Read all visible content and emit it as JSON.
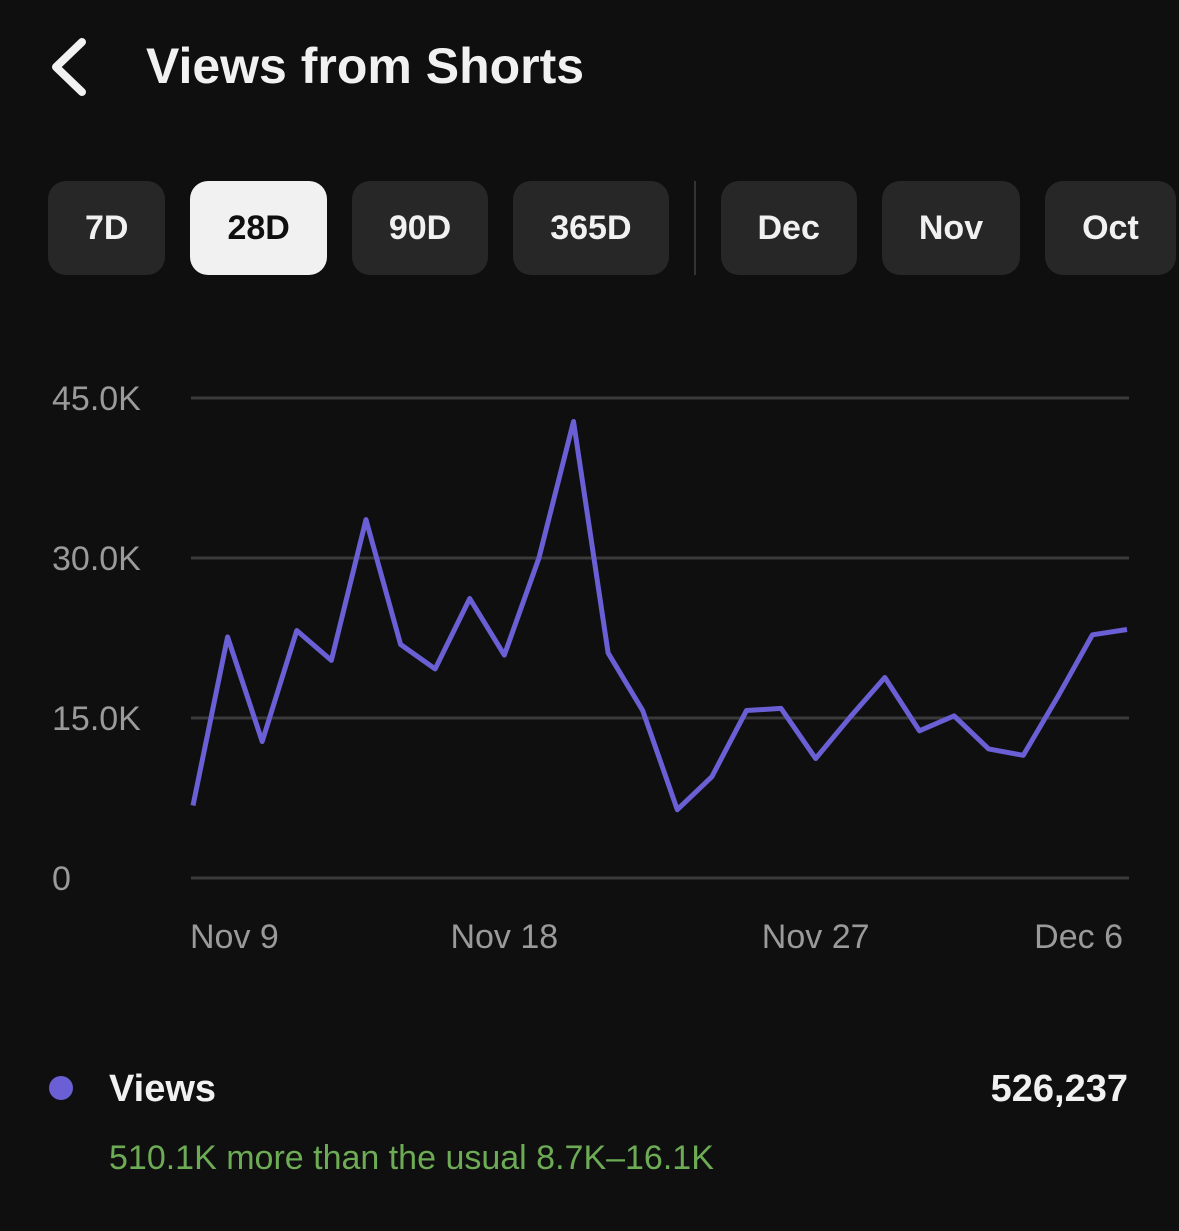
{
  "header": {
    "title": "Views from Shorts"
  },
  "tabs": [
    {
      "label": "7D"
    },
    {
      "label": "28D",
      "selected": true
    },
    {
      "label": "90D"
    },
    {
      "label": "365D"
    },
    {
      "label": "Dec"
    },
    {
      "label": "Nov"
    },
    {
      "label": "Oct"
    }
  ],
  "chart_data": {
    "type": "line",
    "categories": [
      "Nov 9",
      null,
      null,
      null,
      null,
      null,
      null,
      null,
      null,
      "Nov 18",
      null,
      null,
      null,
      null,
      null,
      null,
      null,
      null,
      "Nov 27",
      null,
      null,
      null,
      null,
      null,
      null,
      null,
      null,
      "Dec 6"
    ],
    "series": [
      {
        "name": "Views",
        "color": "#6a5fd4",
        "values": [
          6800,
          22600,
          12800,
          23200,
          20400,
          33600,
          21900,
          19600,
          26200,
          20900,
          30000,
          42800,
          21100,
          15700,
          6400,
          9500,
          15700,
          15900,
          11200,
          15100,
          18800,
          13800,
          15200,
          12100,
          11500,
          17000,
          22800,
          23300
        ]
      }
    ],
    "ylim": [
      0,
      45000
    ],
    "yticks": [
      0,
      {
        "value": 15000,
        "label": "15.0K"
      },
      {
        "value": 30000,
        "label": "30.0K"
      },
      {
        "value": 45000,
        "label": "45.0K"
      }
    ],
    "grid": true
  },
  "summary": {
    "total": "526,237",
    "comparison": "510.1K more than the usual 8.7K–16.1K"
  }
}
